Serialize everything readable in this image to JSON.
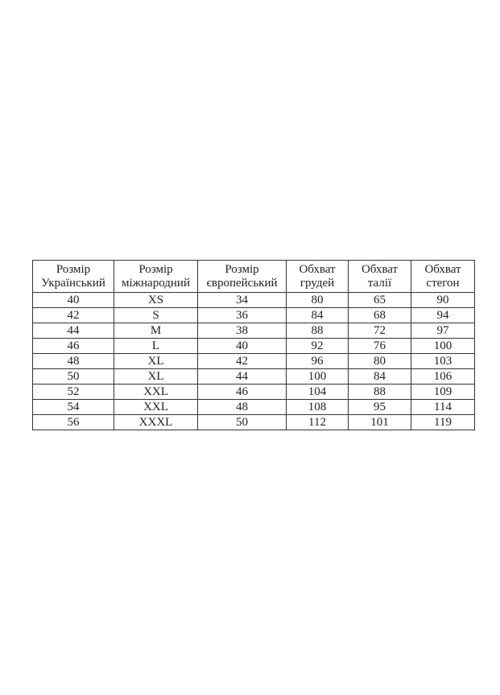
{
  "table": {
    "headers": [
      [
        "Розмір",
        "Український"
      ],
      [
        "Розмір",
        "міжнародний"
      ],
      [
        "Розмір",
        "європейський"
      ],
      [
        "Обхват",
        "грудей"
      ],
      [
        "Обхват",
        "талії"
      ],
      [
        "Обхват",
        "стегон"
      ]
    ],
    "rows": [
      [
        "40",
        "XS",
        "34",
        "80",
        "65",
        "90"
      ],
      [
        "42",
        "S",
        "36",
        "84",
        "68",
        "94"
      ],
      [
        "44",
        "M",
        "38",
        "88",
        "72",
        "97"
      ],
      [
        "46",
        "L",
        "40",
        "92",
        "76",
        "100"
      ],
      [
        "48",
        "XL",
        "42",
        "96",
        "80",
        "103"
      ],
      [
        "50",
        "XL",
        "44",
        "100",
        "84",
        "106"
      ],
      [
        "52",
        "XXL",
        "46",
        "104",
        "88",
        "109"
      ],
      [
        "54",
        "XXL",
        "48",
        "108",
        "95",
        "114"
      ],
      [
        "56",
        "XXXL",
        "50",
        "112",
        "101",
        "119"
      ]
    ]
  }
}
